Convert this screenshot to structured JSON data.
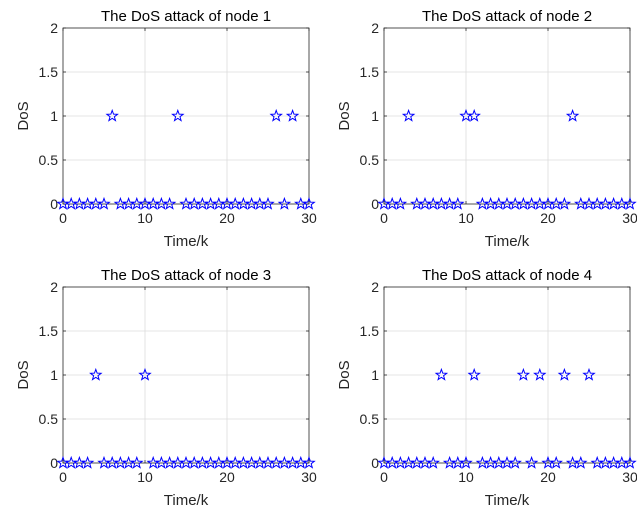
{
  "chart_data": [
    {
      "type": "scatter",
      "title": "The DoS attack of node 1",
      "xlabel": "Time/k",
      "ylabel": "DoS",
      "xlim": [
        0,
        30
      ],
      "ylim": [
        0,
        2
      ],
      "xticks": [
        "0",
        "10",
        "20",
        "30"
      ],
      "yticks": [
        "0",
        "0.5",
        "1",
        "1.5",
        "2"
      ],
      "grid": true,
      "marker": "pentagram",
      "series": [
        {
          "x": [
            0,
            1,
            2,
            3,
            4,
            5,
            6,
            7,
            8,
            9,
            10,
            11,
            12,
            13,
            14,
            15,
            16,
            17,
            18,
            19,
            20,
            21,
            22,
            23,
            24,
            25,
            26,
            27,
            28,
            29,
            30
          ],
          "y": [
            0,
            0,
            0,
            0,
            0,
            0,
            1,
            0,
            0,
            0,
            0,
            0,
            0,
            0,
            1,
            0,
            0,
            0,
            0,
            0,
            0,
            0,
            0,
            0,
            0,
            0,
            1,
            0,
            1,
            0,
            0
          ]
        }
      ]
    },
    {
      "type": "scatter",
      "title": "The DoS attack of node 2",
      "xlabel": "Time/k",
      "ylabel": "DoS",
      "xlim": [
        0,
        30
      ],
      "ylim": [
        0,
        2
      ],
      "xticks": [
        "0",
        "10",
        "20",
        "30"
      ],
      "yticks": [
        "0",
        "0.5",
        "1",
        "1.5",
        "2"
      ],
      "grid": true,
      "marker": "pentagram",
      "series": [
        {
          "x": [
            0,
            1,
            2,
            3,
            4,
            5,
            6,
            7,
            8,
            9,
            10,
            11,
            12,
            13,
            14,
            15,
            16,
            17,
            18,
            19,
            20,
            21,
            22,
            23,
            24,
            25,
            26,
            27,
            28,
            29,
            30
          ],
          "y": [
            0,
            0,
            0,
            1,
            0,
            0,
            0,
            0,
            0,
            0,
            1,
            1,
            0,
            0,
            0,
            0,
            0,
            0,
            0,
            0,
            0,
            0,
            0,
            1,
            0,
            0,
            0,
            0,
            0,
            0,
            0
          ]
        }
      ]
    },
    {
      "type": "scatter",
      "title": "The DoS attack of node 3",
      "xlabel": "Time/k",
      "ylabel": "DoS",
      "xlim": [
        0,
        30
      ],
      "ylim": [
        0,
        2
      ],
      "xticks": [
        "0",
        "10",
        "20",
        "30"
      ],
      "yticks": [
        "0",
        "0.5",
        "1",
        "1.5",
        "2"
      ],
      "grid": true,
      "marker": "pentagram",
      "series": [
        {
          "x": [
            0,
            1,
            2,
            3,
            4,
            5,
            6,
            7,
            8,
            9,
            10,
            11,
            12,
            13,
            14,
            15,
            16,
            17,
            18,
            19,
            20,
            21,
            22,
            23,
            24,
            25,
            26,
            27,
            28,
            29,
            30
          ],
          "y": [
            0,
            0,
            0,
            0,
            1,
            0,
            0,
            0,
            0,
            0,
            1,
            0,
            0,
            0,
            0,
            0,
            0,
            0,
            0,
            0,
            0,
            0,
            0,
            0,
            0,
            0,
            0,
            0,
            0,
            0,
            0
          ]
        }
      ]
    },
    {
      "type": "scatter",
      "title": "The DoS attack of node 4",
      "xlabel": "Time/k",
      "ylabel": "DoS",
      "xlim": [
        0,
        30
      ],
      "ylim": [
        0,
        2
      ],
      "xticks": [
        "0",
        "10",
        "20",
        "30"
      ],
      "yticks": [
        "0",
        "0.5",
        "1",
        "1.5",
        "2"
      ],
      "grid": true,
      "marker": "pentagram",
      "series": [
        {
          "x": [
            0,
            1,
            2,
            3,
            4,
            5,
            6,
            7,
            8,
            9,
            10,
            11,
            12,
            13,
            14,
            15,
            16,
            17,
            18,
            19,
            20,
            21,
            22,
            23,
            24,
            25,
            26,
            27,
            28,
            29,
            30
          ],
          "y": [
            0,
            0,
            0,
            0,
            0,
            0,
            0,
            1,
            0,
            0,
            0,
            1,
            0,
            0,
            0,
            0,
            0,
            1,
            0,
            1,
            0,
            0,
            1,
            0,
            0,
            1,
            0,
            0,
            0,
            0,
            0
          ]
        }
      ]
    }
  ],
  "colors": {
    "marker": "#0000ff",
    "axis": "#262626",
    "grid": "#dcdcdc",
    "background": "#ffffff"
  }
}
